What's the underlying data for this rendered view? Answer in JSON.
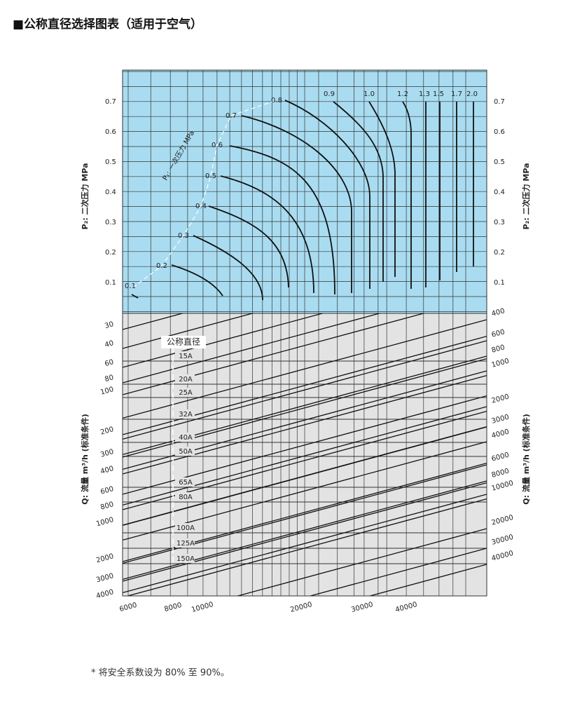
{
  "title": "■公称直径选择图表（适用于空气）",
  "p2_axis": {
    "label": "P₂: 二次压力 MPa",
    "ticks": [
      "0.7",
      "0.6",
      "0.5",
      "0.4",
      "0.3",
      "0.2",
      "0.1"
    ]
  },
  "p1_axis": {
    "label": "P₁: 一次压力 MPa",
    "curves": [
      "0.1",
      "0.2",
      "0.3",
      "0.4",
      "0.5",
      "0.6",
      "0.7",
      "0.8",
      "0.9",
      "1.0",
      "1.2",
      "1.3",
      "1.5",
      "1.7",
      "2.0"
    ]
  },
  "q_axis": {
    "label": "Q: 流量 m³/h (标准条件)",
    "left_ticks": [
      "30",
      "40",
      "60",
      "80",
      "100",
      "200",
      "300",
      "400",
      "600",
      "800",
      "1000",
      "2000",
      "3000",
      "4000"
    ],
    "right_ticks": [
      "400",
      "600",
      "800",
      "1000",
      "2000",
      "3000",
      "4000",
      "6000",
      "8000",
      "10000",
      "20000",
      "30000",
      "40000"
    ],
    "bottom_ticks": [
      "6000",
      "8000",
      "10000",
      "20000",
      "30000",
      "40000"
    ]
  },
  "nominal_diameter": {
    "label": "公称直径",
    "sizes": [
      "15A",
      "20A",
      "25A",
      "32A",
      "40A",
      "50A",
      "65A",
      "80A",
      "100A",
      "125A",
      "150A"
    ]
  },
  "footnote": "* 将安全系数设为 80% 至 90%。"
}
